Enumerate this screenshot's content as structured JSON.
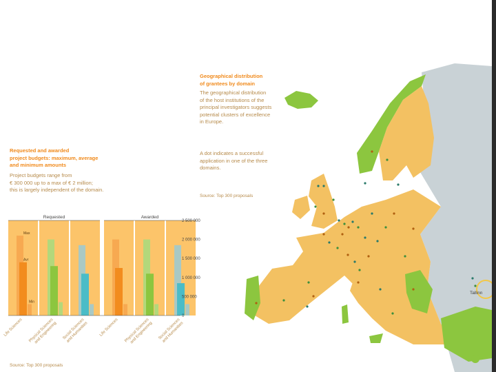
{
  "left_text": {
    "heading": [
      "Requested and awarded",
      "project budgets: maximum, average",
      "and minimum amounts"
    ],
    "body": [
      "Project budgets range from",
      "€ 300 000 up to a max of € 2 million;",
      "this is largely independent of the domain."
    ]
  },
  "map_text": {
    "heading": [
      "Geographical distribution",
      "of grantees by domain"
    ],
    "body": [
      "The geographical distribution",
      "of the host institutions of the",
      "principal investigators suggests",
      "potential clusters of excellence",
      "in Europe."
    ],
    "body2": [
      "A dot indicates a successful",
      "application in one of the three",
      "domains."
    ],
    "source": "Source: Top 300 proposals",
    "callout": "Tallinn"
  },
  "chart_source": "Source: Top 300 proposals",
  "colors": {
    "life_sciences": "#f28c1e",
    "physical_sciences": "#8cc63f",
    "social_sciences": "#4bbcc7",
    "panel_bg": "#fcc46a",
    "map_land": "#f3c162",
    "map_other": "#c9d2d6",
    "map_green": "#8cc63f"
  },
  "chart_data": {
    "type": "bar",
    "subtype": "range (max / average / min) per domain",
    "panels": [
      "Requested",
      "Awarded"
    ],
    "categories": [
      "Life Sciences",
      "Physical Sciences and Engineering",
      "Social Sciences and Humanities"
    ],
    "y_ticks": [
      "2 500 000",
      "2 000 000",
      "1 500 000",
      "1 000 000",
      "500 000",
      "0"
    ],
    "ylim": [
      0,
      2500000
    ],
    "stat_labels": [
      "Max",
      "Avr",
      "Min"
    ],
    "series": [
      {
        "panel": "Requested",
        "category": "Life Sciences",
        "max": 2100000,
        "avg": 1400000,
        "min": 300000
      },
      {
        "panel": "Requested",
        "category": "Physical Sciences and Engineering",
        "max": 2000000,
        "avg": 1300000,
        "min": 350000
      },
      {
        "panel": "Requested",
        "category": "Social Sciences and Humanities",
        "max": 1850000,
        "avg": 1100000,
        "min": 300000
      },
      {
        "panel": "Awarded",
        "category": "Life Sciences",
        "max": 2000000,
        "avg": 1250000,
        "min": 300000
      },
      {
        "panel": "Awarded",
        "category": "Physical Sciences and Engineering",
        "max": 2000000,
        "avg": 1100000,
        "min": 300000
      },
      {
        "panel": "Awarded",
        "category": "Social Sciences and Humanities",
        "max": 1850000,
        "avg": 850000,
        "min": 300000
      }
    ]
  }
}
